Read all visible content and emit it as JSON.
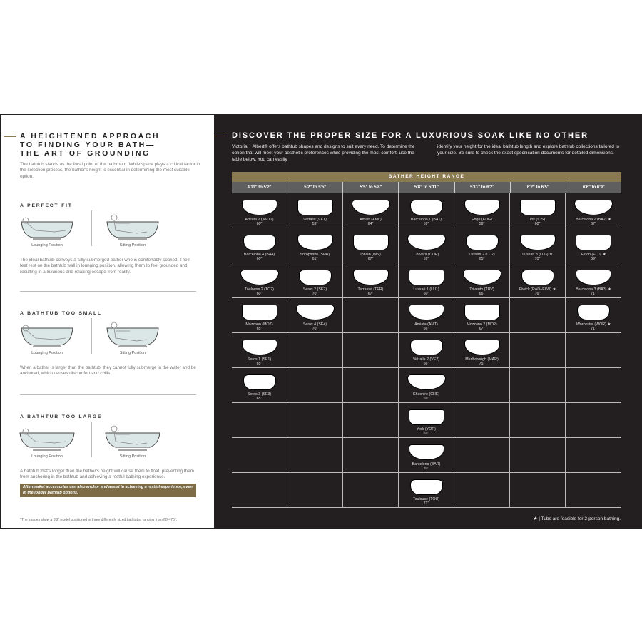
{
  "left": {
    "title": [
      "A HEIGHTENED APPROACH",
      "TO FINDING YOUR BATH—",
      "THE ART OF GROUNDING"
    ],
    "intro": "The bathtub stands as the focal point of the bathroom. While space plays a critical factor in the selection process, the bather's height is essential in determining the most suitable option.",
    "sections": [
      {
        "heading": "A PERFECT FIT",
        "captions": [
          "Lounging Position",
          "Sitting Position"
        ],
        "text": "The ideal bathtub conveys a fully submerged bather who is comfortably soaked. Their feet rest on the bathtub wall in lounging position, allowing them to feel grounded and resulting in a luxurious and relaxing escape from reality."
      },
      {
        "heading": "A BATHTUB TOO SMALL",
        "captions": [
          "Lounging Position",
          "Sitting Position"
        ],
        "text": "When a bather is larger than the bathtub, they cannot fully submerge in the water and be anchored, which causes discomfort and chills."
      },
      {
        "heading": "A BATHTUB TOO LARGE",
        "captions": [
          "Lounging Position",
          "Sitting Position"
        ],
        "text": "A bathtub that's longer than the bather's height will cause them to float, preventing them from anchoring in the bathtub and achieving a restful bathing experience."
      }
    ],
    "callout": "Aftermarket accessories can also anchor and assist in achieving a restful experience, even in the longer bathtub options.",
    "footnote": "*The images show a 5'8\" model positioned in three differently sized bathtubs, ranging from 60\"–70\"."
  },
  "right": {
    "title": "DISCOVER THE PROPER SIZE FOR A LUXURIOUS SOAK LIKE NO OTHER",
    "intro_left": "Victoria + Albert® offers bathtub shapes and designs to suit every need. To determine the option that will meet your aesthetic preferences while providing the most comfort, use the table below. You can easily",
    "intro_right": "identify your height for the ideal bathtub length and explore bathtub collections tailored to your size. Be sure to check the exact specification documents for detailed dimensions.",
    "table_title": "BATHER HEIGHT RANGE",
    "columns": [
      {
        "range": "4'11\" to 5'2\"",
        "tubs": [
          {
            "name": "Amiata 2 (AMT2)",
            "length": "60\""
          },
          {
            "name": "Barcelona 4 (BA4)",
            "length": "60\""
          },
          {
            "name": "Toulouse 2 (TO2)",
            "length": "60\""
          },
          {
            "name": "Mozzano (MOZ)",
            "length": "65\""
          },
          {
            "name": "Seros 1 (SE1)",
            "length": "65\""
          },
          {
            "name": "Seros 3 (SE3)",
            "length": "65\""
          }
        ]
      },
      {
        "range": "5'2\" to 5'5\"",
        "tubs": [
          {
            "name": "Vetralla (VET)",
            "length": "59\""
          },
          {
            "name": "Shropshire (SHR)",
            "length": "61\""
          },
          {
            "name": "Seros 2 (SE2)",
            "length": "70\""
          },
          {
            "name": "Seros 4 (SE4)",
            "length": "70\""
          }
        ]
      },
      {
        "range": "5'5\" to 5'8\"",
        "tubs": [
          {
            "name": "Amalfi (AML)",
            "length": "64\""
          },
          {
            "name": "Ionian (INN)",
            "length": "67\""
          },
          {
            "name": "Terrassa (TER)",
            "length": "67\""
          }
        ]
      },
      {
        "range": "5'8\" to 5'11\"",
        "tubs": [
          {
            "name": "Barcelona 1 (BA1)",
            "length": "59\""
          },
          {
            "name": "Corvara (COR)",
            "length": "59\""
          },
          {
            "name": "Lussari 1 (LU1)",
            "length": "60\""
          },
          {
            "name": "Amiata (AMT)",
            "length": "66\""
          },
          {
            "name": "Vetralla 2 (VE2)",
            "length": "66\""
          },
          {
            "name": "Cheshire (CHE)",
            "length": "69\""
          },
          {
            "name": "York (YOR)",
            "length": "69\""
          },
          {
            "name": "Barcelona (BAR)",
            "length": "70\""
          },
          {
            "name": "Toulouse (TOU)",
            "length": "71\""
          }
        ]
      },
      {
        "range": "5'11\" to 6'2\"",
        "tubs": [
          {
            "name": "Edge (EDG)",
            "length": "59\""
          },
          {
            "name": "Lussari 2 (LU2)",
            "length": "65\""
          },
          {
            "name": "Trivento (TRV)",
            "length": "66\""
          },
          {
            "name": "Mozzano 2 (MO2)",
            "length": "67\""
          },
          {
            "name": "Marlborough (MAR)",
            "length": "75\""
          }
        ]
      },
      {
        "range": "6'2\" to 6'5\"",
        "tubs": [
          {
            "name": "Ios (IOS)",
            "length": "60\""
          },
          {
            "name": "Lussari 3 (LU3) ★",
            "length": "70\""
          },
          {
            "name": "Elwick (RAD+ELW) ★",
            "length": "76\""
          }
        ]
      },
      {
        "range": "6'6\" to 6'9\"",
        "tubs": [
          {
            "name": "Barcelona 2 (BA2) ★",
            "length": "67\""
          },
          {
            "name": "Eldon (ELD) ★",
            "length": "69\""
          },
          {
            "name": "Barcelona 3 (BA3) ★",
            "length": "71\""
          },
          {
            "name": "Worcester (WOR) ★",
            "length": "71\""
          }
        ]
      }
    ],
    "note": "★ | Tubs are feasible for 2-person bathing."
  },
  "colors": {
    "gold": "#8a7a4f",
    "dark": "#231f20",
    "header_gray": "#5f5f5f"
  }
}
